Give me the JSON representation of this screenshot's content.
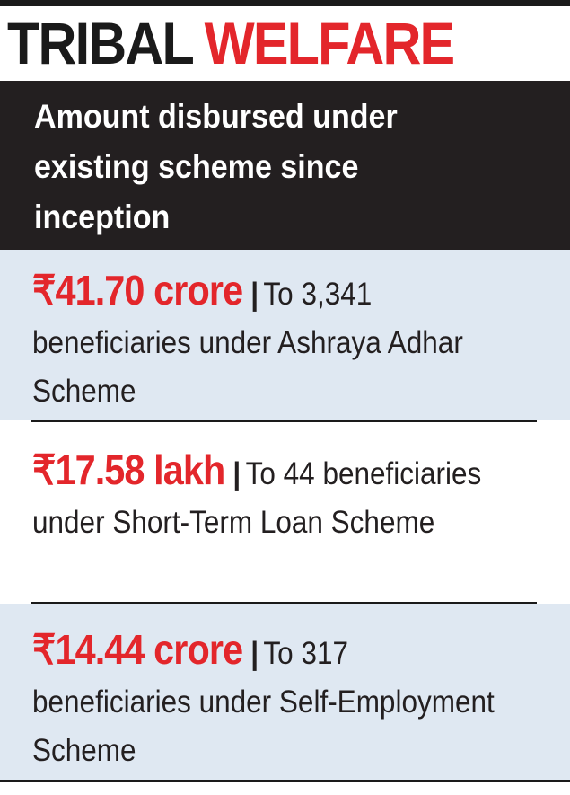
{
  "header": {
    "title_part1": "TRIBAL",
    "title_part2": "WELFARE",
    "subtitle": "Amount disbursed under existing scheme since inception"
  },
  "entries": [
    {
      "amount": "₹41.70 crore",
      "separator": "|",
      "lead": "To 3,341",
      "description": "beneficiaries under Ashraya Adhar Scheme"
    },
    {
      "amount": "₹17.58 lakh",
      "separator": "|",
      "lead": "To 44",
      "description": "beneficiaries under Short-Term Loan Scheme"
    },
    {
      "amount": "₹14.44 crore",
      "separator": "|",
      "lead": "To 317",
      "description": "beneficiaries under Self-Employment Scheme"
    }
  ],
  "colors": {
    "accent": "#e3262b",
    "dark": "#231f20",
    "shade": "#dfe8f2"
  }
}
